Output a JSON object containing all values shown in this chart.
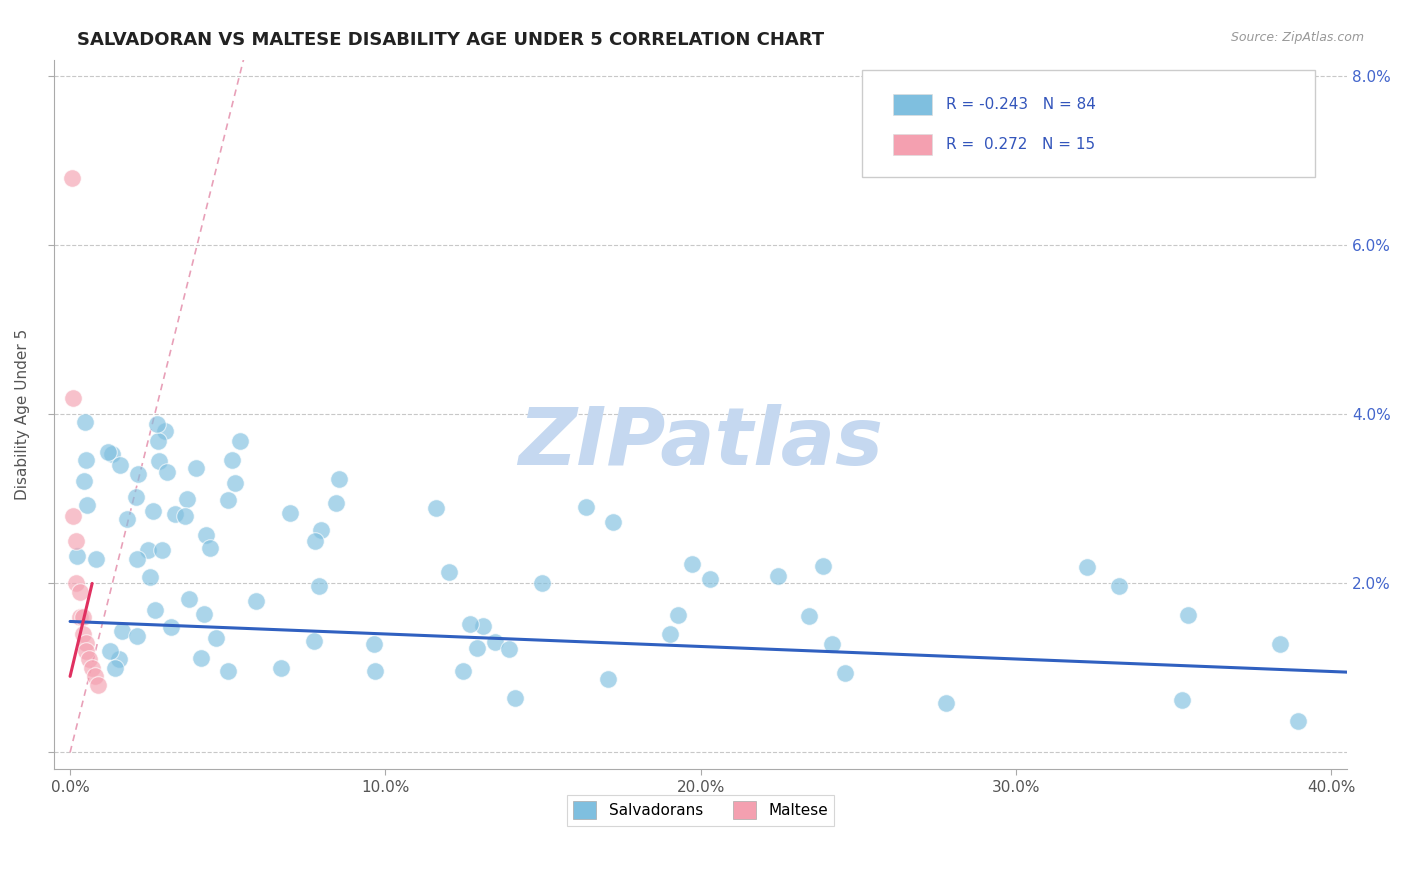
{
  "title": "SALVADORAN VS MALTESE DISABILITY AGE UNDER 5 CORRELATION CHART",
  "source_text": "Source: ZipAtlas.com",
  "ylabel": "Disability Age Under 5",
  "xlim": [
    -0.005,
    0.405
  ],
  "ylim": [
    -0.002,
    0.082
  ],
  "xticks": [
    0.0,
    0.1,
    0.2,
    0.3,
    0.4
  ],
  "xtick_labels": [
    "0.0%",
    "10.0%",
    "20.0%",
    "30.0%",
    "40.0%"
  ],
  "yticks": [
    0.0,
    0.02,
    0.04,
    0.06,
    0.08
  ],
  "ytick_labels_right": [
    "",
    "2.0%",
    "4.0%",
    "6.0%",
    "8.0%"
  ],
  "salvadoran_color": "#7fbfdf",
  "maltese_color": "#f4a0b0",
  "salvadoran_R": -0.243,
  "salvadoran_N": 84,
  "maltese_R": 0.272,
  "maltese_N": 15,
  "background_color": "#ffffff",
  "grid_color": "#c8c8c8",
  "watermark_text": "ZIPatlas",
  "watermark_color": "#c5d8f0",
  "legend_label_salvadoran": "Salvadorans",
  "legend_label_maltese": "Maltese",
  "title_fontsize": 13,
  "trend_blue_color": "#3060c0",
  "trend_pink_solid_color": "#e03060",
  "trend_pink_dash_color": "#e8a0b8",
  "salv_trend_x0": 0.0,
  "salv_trend_y0": 0.0155,
  "salv_trend_x1": 0.405,
  "salv_trend_y1": 0.0095,
  "malt_trend_solid_x0": 0.0,
  "malt_trend_solid_y0": 0.009,
  "malt_trend_solid_x1": 0.007,
  "malt_trend_solid_y1": 0.02,
  "malt_trend_dash_x0": 0.0,
  "malt_trend_dash_y0": 0.0,
  "malt_trend_dash_x1": 0.055,
  "malt_trend_dash_y1": 0.082
}
